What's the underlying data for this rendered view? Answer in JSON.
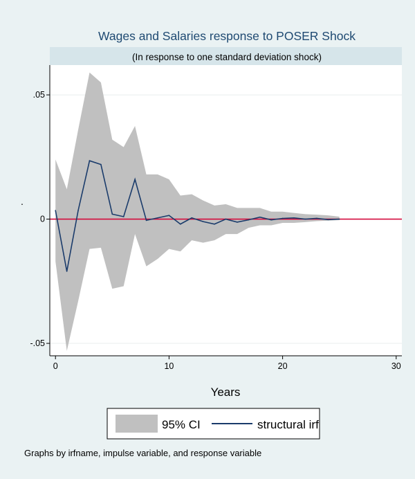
{
  "chart_data": {
    "type": "area",
    "title": "Wages and Salaries response to POSER Shock",
    "subtitle": "(In response to one standard deviation shock)",
    "xlabel": "Years",
    "ylabel": ".",
    "xlim": [
      -0.5,
      30.5
    ],
    "ylim": [
      -0.055,
      0.062
    ],
    "x_ticks": [
      0,
      10,
      20,
      30
    ],
    "x_tick_labels": [
      "0",
      "10",
      "20",
      "30"
    ],
    "y_ticks": [
      -0.05,
      0,
      0.05
    ],
    "y_tick_labels": [
      "-.05",
      "0",
      ".05"
    ],
    "grid": true,
    "legend_position": "bottom",
    "legend": [
      "95% CI",
      "structural irf"
    ],
    "note": "Graphs by irfname, impulse variable, and response variable",
    "x": [
      0,
      1,
      2,
      3,
      4,
      5,
      6,
      7,
      8,
      9,
      10,
      11,
      12,
      13,
      14,
      15,
      16,
      17,
      18,
      19,
      20,
      21,
      22,
      23,
      24,
      25
    ],
    "series": [
      {
        "name": "95% CI",
        "kind": "band",
        "lower": [
          -0.017,
          -0.053,
          -0.033,
          -0.012,
          -0.0115,
          -0.028,
          -0.027,
          -0.006,
          -0.019,
          -0.016,
          -0.012,
          -0.013,
          -0.0085,
          -0.0095,
          -0.0085,
          -0.006,
          -0.006,
          -0.0035,
          -0.0025,
          -0.0025,
          -0.0015,
          -0.0015,
          -0.0012,
          -0.0008,
          -0.0006,
          -0.0004
        ],
        "upper": [
          0.024,
          0.012,
          0.036,
          0.059,
          0.055,
          0.032,
          0.029,
          0.0375,
          0.018,
          0.018,
          0.016,
          0.0095,
          0.01,
          0.0075,
          0.0055,
          0.006,
          0.0045,
          0.0045,
          0.0045,
          0.003,
          0.003,
          0.0025,
          0.002,
          0.0018,
          0.0015,
          0.001
        ]
      },
      {
        "name": "structural irf",
        "kind": "line",
        "values": [
          0.0035,
          -0.021,
          0.0035,
          0.0235,
          0.022,
          0.002,
          0.001,
          0.016,
          -0.0005,
          0.0005,
          0.0015,
          -0.002,
          0.0005,
          -0.001,
          -0.002,
          0.0,
          -0.0012,
          -0.0003,
          0.0008,
          -0.0003,
          0.0003,
          0.0005,
          0.0,
          0.0003,
          -0.0002,
          0.0
        ]
      }
    ],
    "reference_line": {
      "y": 0
    },
    "colors": {
      "figure_background": "#eaf2f3",
      "plot_background": "#ffffff",
      "band_fill": "#c0c0c0",
      "line": "#1a3b6b",
      "zero_line": "#d40a3c",
      "grid": "#e8eeee",
      "subtitle_strip": "#d6e5ea",
      "title": "#1f4a72",
      "text": "#000000"
    }
  }
}
